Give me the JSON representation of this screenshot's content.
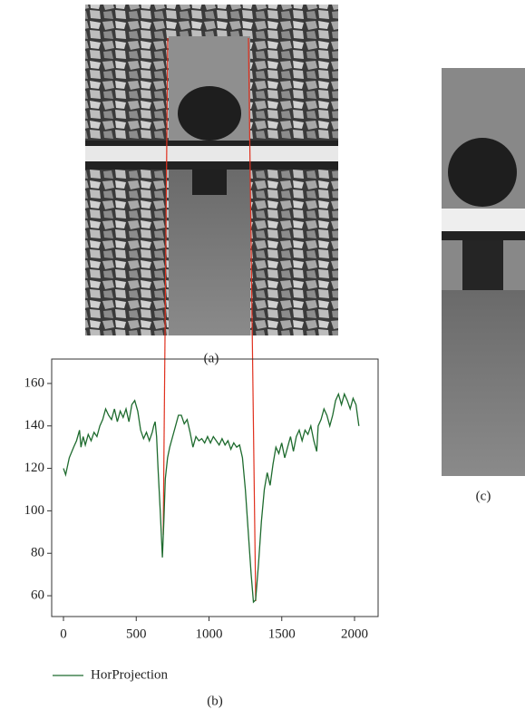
{
  "chart_data": {
    "type": "line",
    "x": [
      0,
      15,
      40,
      70,
      90,
      110,
      120,
      135,
      150,
      170,
      190,
      210,
      230,
      250,
      270,
      290,
      310,
      330,
      350,
      370,
      390,
      410,
      430,
      450,
      470,
      490,
      510,
      530,
      550,
      570,
      590,
      610,
      620,
      630,
      640,
      650,
      665,
      680,
      690,
      700,
      715,
      730,
      750,
      770,
      790,
      810,
      830,
      850,
      870,
      890,
      910,
      930,
      950,
      970,
      990,
      1010,
      1030,
      1050,
      1070,
      1090,
      1110,
      1130,
      1150,
      1170,
      1190,
      1210,
      1230,
      1250,
      1270,
      1290,
      1305,
      1320,
      1340,
      1360,
      1380,
      1400,
      1420,
      1440,
      1460,
      1480,
      1500,
      1520,
      1540,
      1560,
      1580,
      1600,
      1620,
      1640,
      1660,
      1680,
      1700,
      1720,
      1740,
      1750,
      1770,
      1790,
      1810,
      1830,
      1850,
      1870,
      1890,
      1910,
      1930,
      1950,
      1970,
      1990,
      2010,
      2030
    ],
    "series": [
      {
        "name": "HorProjection",
        "color": "#1e6b2e",
        "values": [
          120,
          117,
          125,
          130,
          133,
          138,
          130,
          135,
          131,
          136,
          133,
          137,
          135,
          140,
          143,
          148,
          145,
          143,
          148,
          142,
          147,
          144,
          148,
          142,
          150,
          152,
          147,
          138,
          134,
          137,
          133,
          137,
          140,
          142,
          135,
          120,
          100,
          78,
          95,
          115,
          125,
          130,
          135,
          140,
          145,
          145,
          141,
          143,
          137,
          130,
          135,
          133,
          134,
          132,
          135,
          132,
          135,
          133,
          131,
          134,
          131,
          133,
          129,
          132,
          130,
          131,
          125,
          110,
          90,
          70,
          57,
          58,
          75,
          95,
          110,
          118,
          112,
          122,
          130,
          127,
          132,
          125,
          130,
          135,
          128,
          135,
          138,
          133,
          138,
          136,
          140,
          133,
          128,
          140,
          143,
          148,
          145,
          140,
          145,
          152,
          155,
          150,
          155,
          152,
          148,
          153,
          150,
          140
        ]
      }
    ],
    "xlim": [
      -81,
      2162
    ],
    "ylim": [
      50.2,
      171.5
    ],
    "xticks": [
      0,
      500,
      1000,
      1500,
      2000
    ],
    "yticks": [
      60,
      80,
      100,
      120,
      140,
      160
    ]
  },
  "captions": {
    "a": "(a)",
    "b": "(b)",
    "c": "(c)"
  }
}
